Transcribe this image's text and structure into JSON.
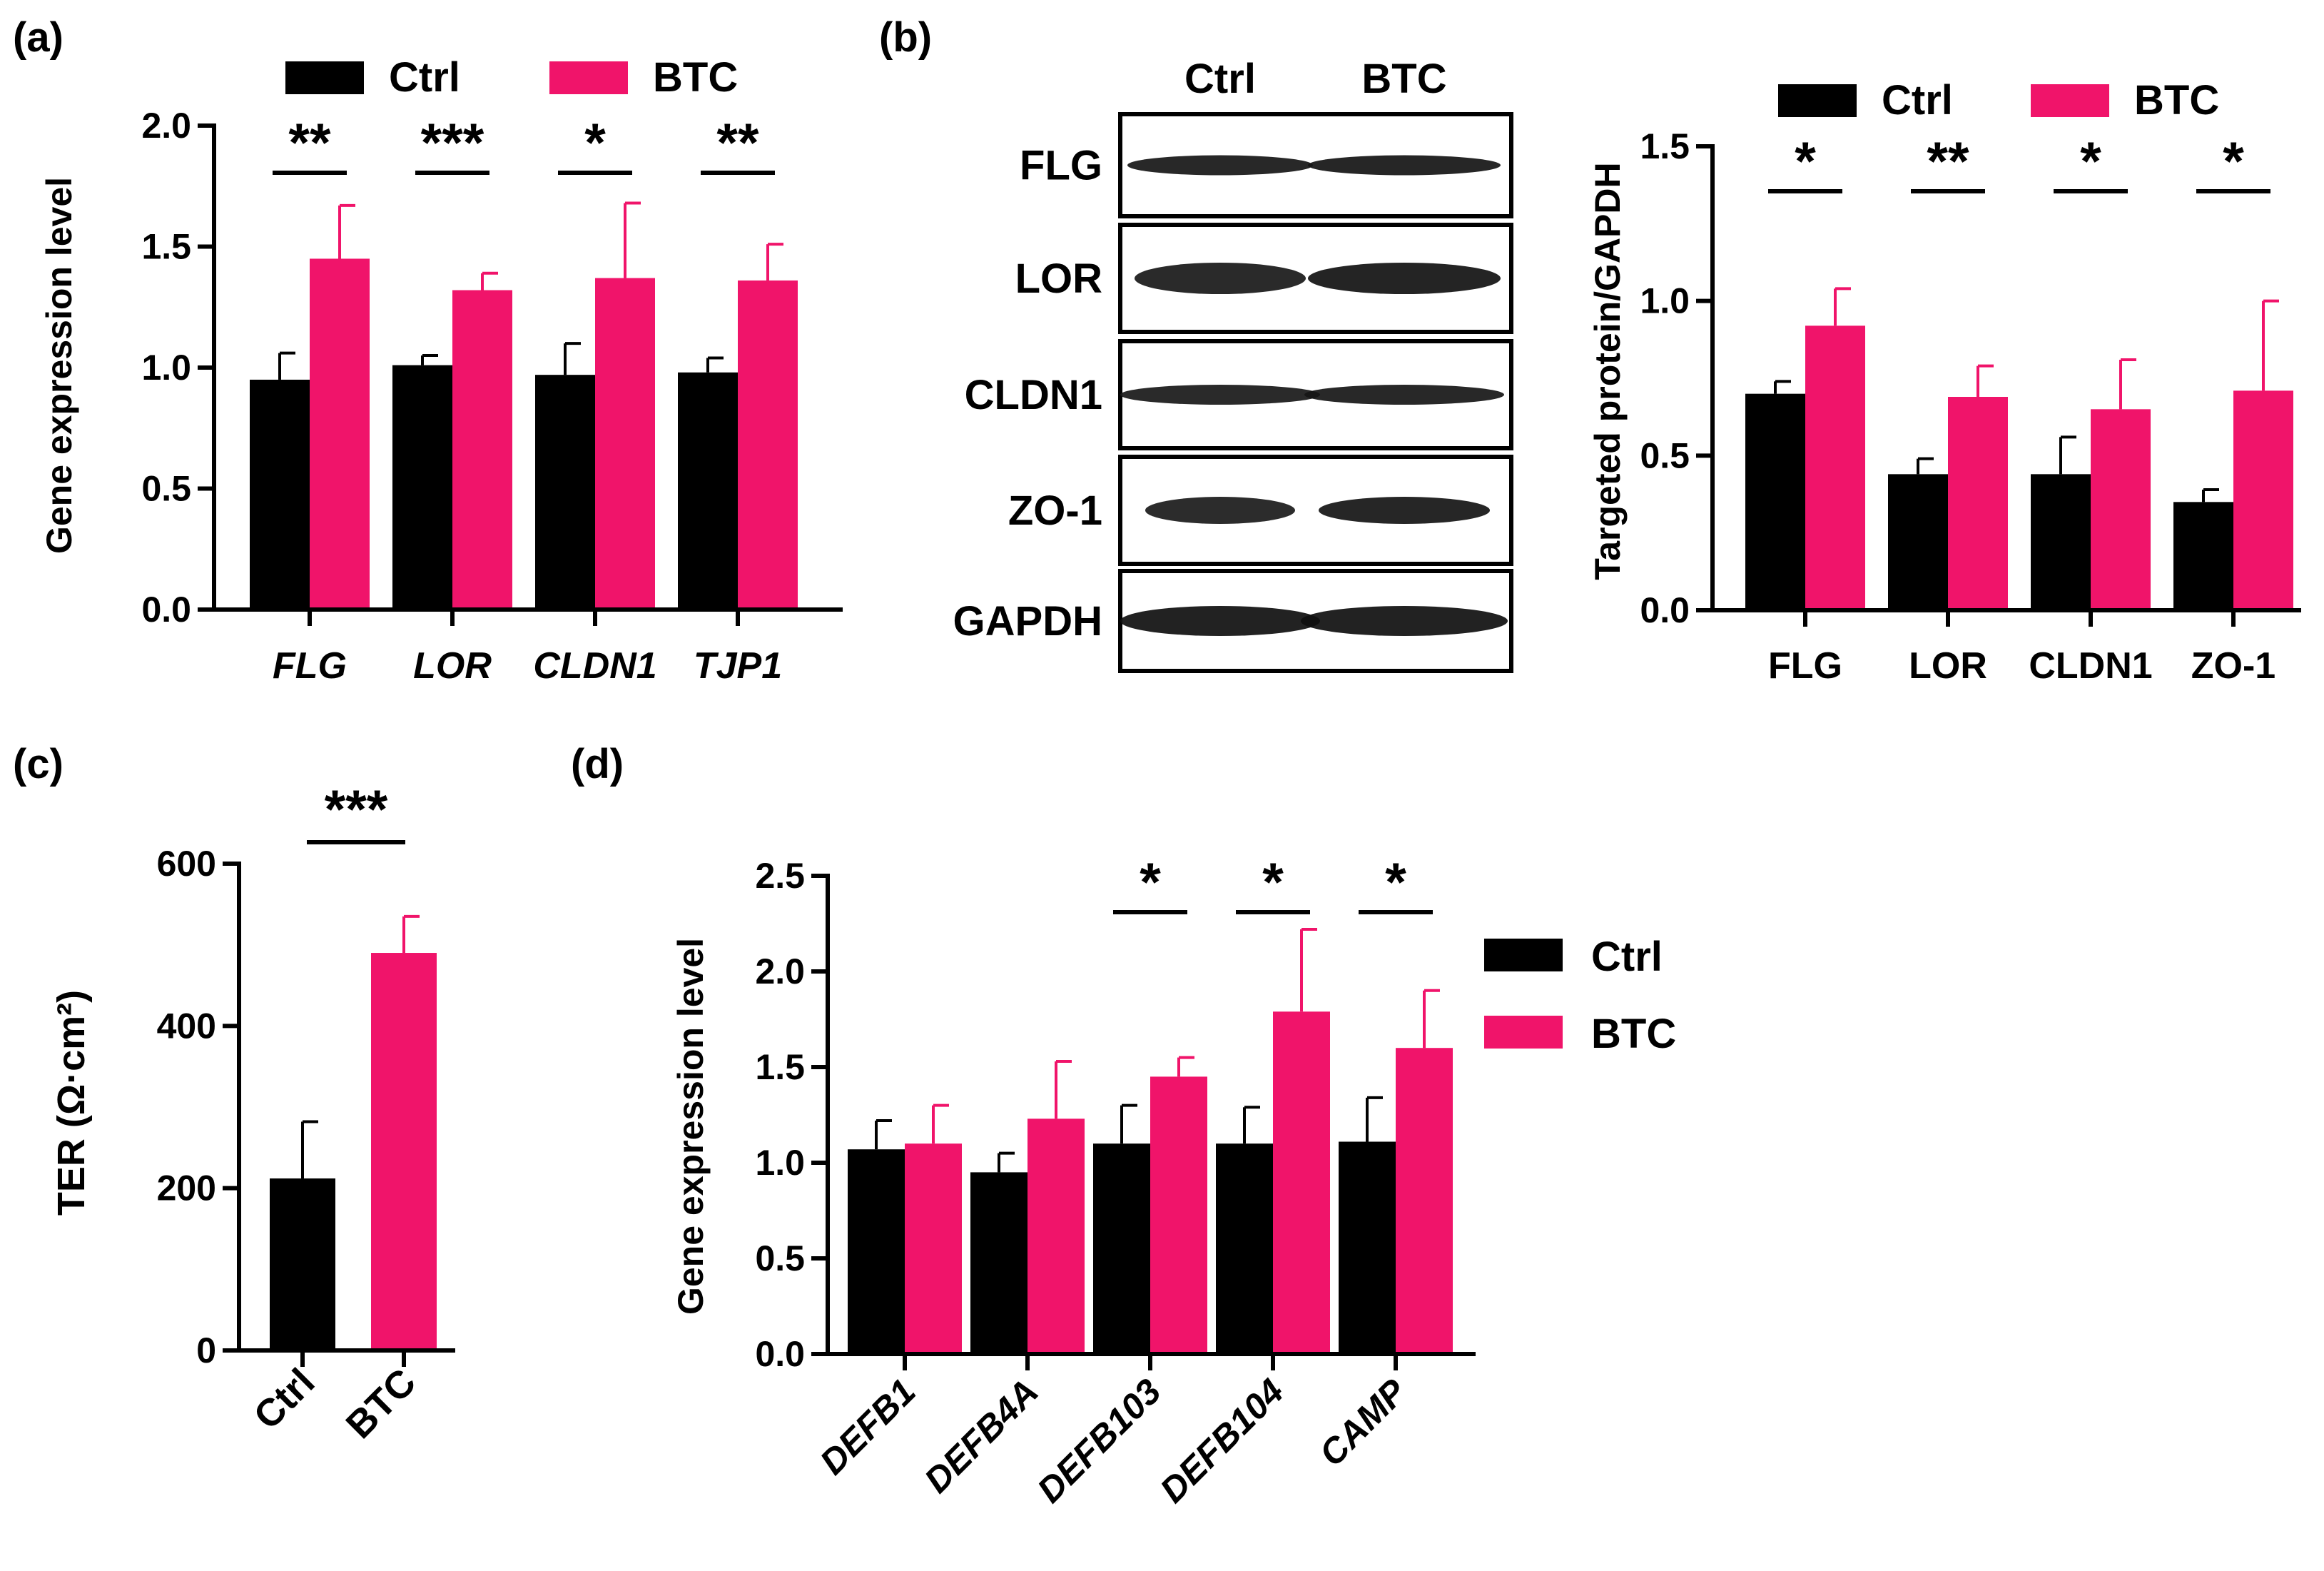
{
  "colors": {
    "ctrl": "#000000",
    "btc": "#f0146a"
  },
  "legend": [
    "Ctrl",
    "BTC"
  ],
  "panel_labels": [
    "(a)",
    "(b)",
    "(c)",
    "(d)"
  ],
  "blot": {
    "columns": [
      "Ctrl",
      "BTC"
    ],
    "rows": [
      "FLG",
      "LOR",
      "CLDN1",
      "ZO-1",
      "GAPDH"
    ],
    "band_intensity": {
      "FLG": [
        0.85,
        0.9
      ],
      "LOR": [
        0.8,
        0.95
      ],
      "CLDN1": [
        0.8,
        0.85
      ],
      "ZO-1": [
        0.75,
        0.9
      ],
      "GAPDH": [
        1.0,
        1.0
      ]
    }
  },
  "chart_data": [
    {
      "id": "a",
      "type": "bar",
      "panel_label": "(a)",
      "ylabel": "Gene expression level",
      "ylim": [
        0,
        2.0
      ],
      "yticks": [
        "0.0",
        "0.5",
        "1.0",
        "1.5",
        "2.0"
      ],
      "categories": [
        "FLG",
        "LOR",
        "CLDN1",
        "TJP1"
      ],
      "category_italic": true,
      "series": [
        {
          "name": "Ctrl",
          "values": [
            0.95,
            1.01,
            0.97,
            0.98
          ],
          "errors": [
            0.11,
            0.04,
            0.13,
            0.06
          ]
        },
        {
          "name": "BTC",
          "values": [
            1.45,
            1.32,
            1.37,
            1.36
          ],
          "errors": [
            0.22,
            0.07,
            0.31,
            0.15
          ]
        }
      ],
      "significance": [
        "**",
        "***",
        "*",
        "**"
      ],
      "legend": [
        "Ctrl",
        "BTC"
      ]
    },
    {
      "id": "b",
      "type": "bar",
      "panel_label": "(b)",
      "ylabel": "Targeted protein/GAPDH",
      "ylim": [
        0,
        1.5
      ],
      "yticks": [
        "0.0",
        "0.5",
        "1.0",
        "1.5"
      ],
      "categories": [
        "FLG",
        "LOR",
        "CLDN1",
        "ZO-1"
      ],
      "category_italic": false,
      "series": [
        {
          "name": "Ctrl",
          "values": [
            0.7,
            0.44,
            0.44,
            0.35
          ],
          "errors": [
            0.04,
            0.05,
            0.12,
            0.04
          ]
        },
        {
          "name": "BTC",
          "values": [
            0.92,
            0.69,
            0.65,
            0.71
          ],
          "errors": [
            0.12,
            0.1,
            0.16,
            0.29
          ]
        }
      ],
      "significance": [
        "*",
        "**",
        "*",
        "*"
      ],
      "legend": [
        "Ctrl",
        "BTC"
      ]
    },
    {
      "id": "c",
      "type": "bar",
      "panel_label": "(c)",
      "ylabel": "TER (Ω·cm²)",
      "ylim": [
        0,
        600
      ],
      "yticks": [
        "0",
        "200",
        "400",
        "600"
      ],
      "categories": [
        "Ctrl",
        "BTC"
      ],
      "values": [
        212,
        490
      ],
      "errors": [
        70,
        45
      ],
      "significance": [
        "***"
      ]
    },
    {
      "id": "d",
      "type": "bar",
      "panel_label": "(d)",
      "ylabel": "Gene expression level",
      "ylim": [
        0,
        2.5
      ],
      "yticks": [
        "0.0",
        "0.5",
        "1.0",
        "1.5",
        "2.0",
        "2.5"
      ],
      "categories": [
        "DEFB1",
        "DEFB4A",
        "DEFB103",
        "DEFB104",
        "CAMP"
      ],
      "category_italic": true,
      "series": [
        {
          "name": "Ctrl",
          "values": [
            1.07,
            0.95,
            1.1,
            1.1,
            1.11
          ],
          "errors": [
            0.15,
            0.1,
            0.2,
            0.19,
            0.23
          ]
        },
        {
          "name": "BTC",
          "values": [
            1.1,
            1.23,
            1.45,
            1.79,
            1.6
          ],
          "errors": [
            0.2,
            0.3,
            0.1,
            0.43,
            0.3
          ]
        }
      ],
      "significance": [
        "",
        "",
        "*",
        "*",
        "*"
      ],
      "legend": [
        "Ctrl",
        "BTC"
      ]
    }
  ]
}
